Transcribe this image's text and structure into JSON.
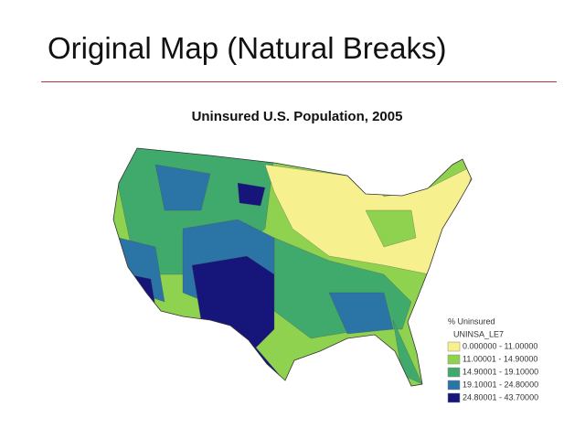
{
  "header": {
    "title": "Original Map (Natural Breaks)"
  },
  "map": {
    "title": "Uninsured U.S. Population, 2005"
  },
  "legend": {
    "title": "% Uninsured",
    "field": "UNINSA_LE7",
    "items": [
      {
        "label": "0.000000 - 11.00000",
        "color": "#f6f08e"
      },
      {
        "label": "11.00001 - 14.90000",
        "color": "#8fd24f"
      },
      {
        "label": "14.90001 - 19.10000",
        "color": "#3faa6c"
      },
      {
        "label": "19.10001 - 24.80000",
        "color": "#2a74a6"
      },
      {
        "label": "24.80001 - 43.70000",
        "color": "#16167a"
      }
    ]
  }
}
